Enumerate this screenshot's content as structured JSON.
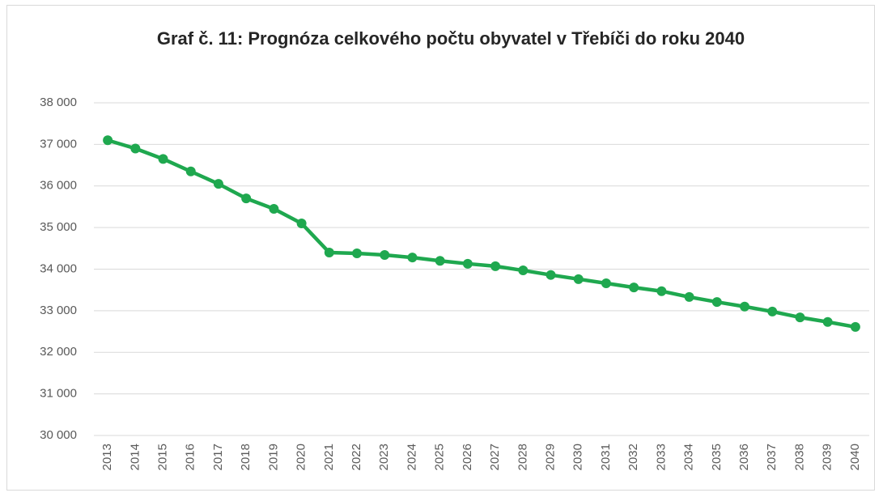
{
  "chart_data": {
    "type": "line",
    "title": "Graf č. 11: Prognóza celkového počtu obyvatel v Třebíči do roku 2040",
    "categories": [
      "2013",
      "2014",
      "2015",
      "2016",
      "2017",
      "2018",
      "2019",
      "2020",
      "2021",
      "2022",
      "2023",
      "2024",
      "2025",
      "2026",
      "2027",
      "2028",
      "2029",
      "2030",
      "2031",
      "2032",
      "2033",
      "2034",
      "2035",
      "2036",
      "2037",
      "2038",
      "2039",
      "2040"
    ],
    "values": [
      37100,
      36900,
      36650,
      36350,
      36050,
      35700,
      35450,
      35100,
      34400,
      34380,
      34340,
      34280,
      34200,
      34130,
      34070,
      33970,
      33860,
      33760,
      33660,
      33560,
      33470,
      33330,
      33210,
      33100,
      32980,
      32840,
      32730,
      32610
    ],
    "color": "#1fa84f",
    "ylim": [
      30000,
      38000
    ],
    "yticks": [
      {
        "value": 30000,
        "label": "30 000"
      },
      {
        "value": 31000,
        "label": "31 000"
      },
      {
        "value": 32000,
        "label": "32 000"
      },
      {
        "value": 33000,
        "label": "33 000"
      },
      {
        "value": 34000,
        "label": "34 000"
      },
      {
        "value": 35000,
        "label": "35 000"
      },
      {
        "value": 36000,
        "label": "36 000"
      },
      {
        "value": 37000,
        "label": "37 000"
      },
      {
        "value": 38000,
        "label": "38 000"
      }
    ],
    "grid": true
  }
}
